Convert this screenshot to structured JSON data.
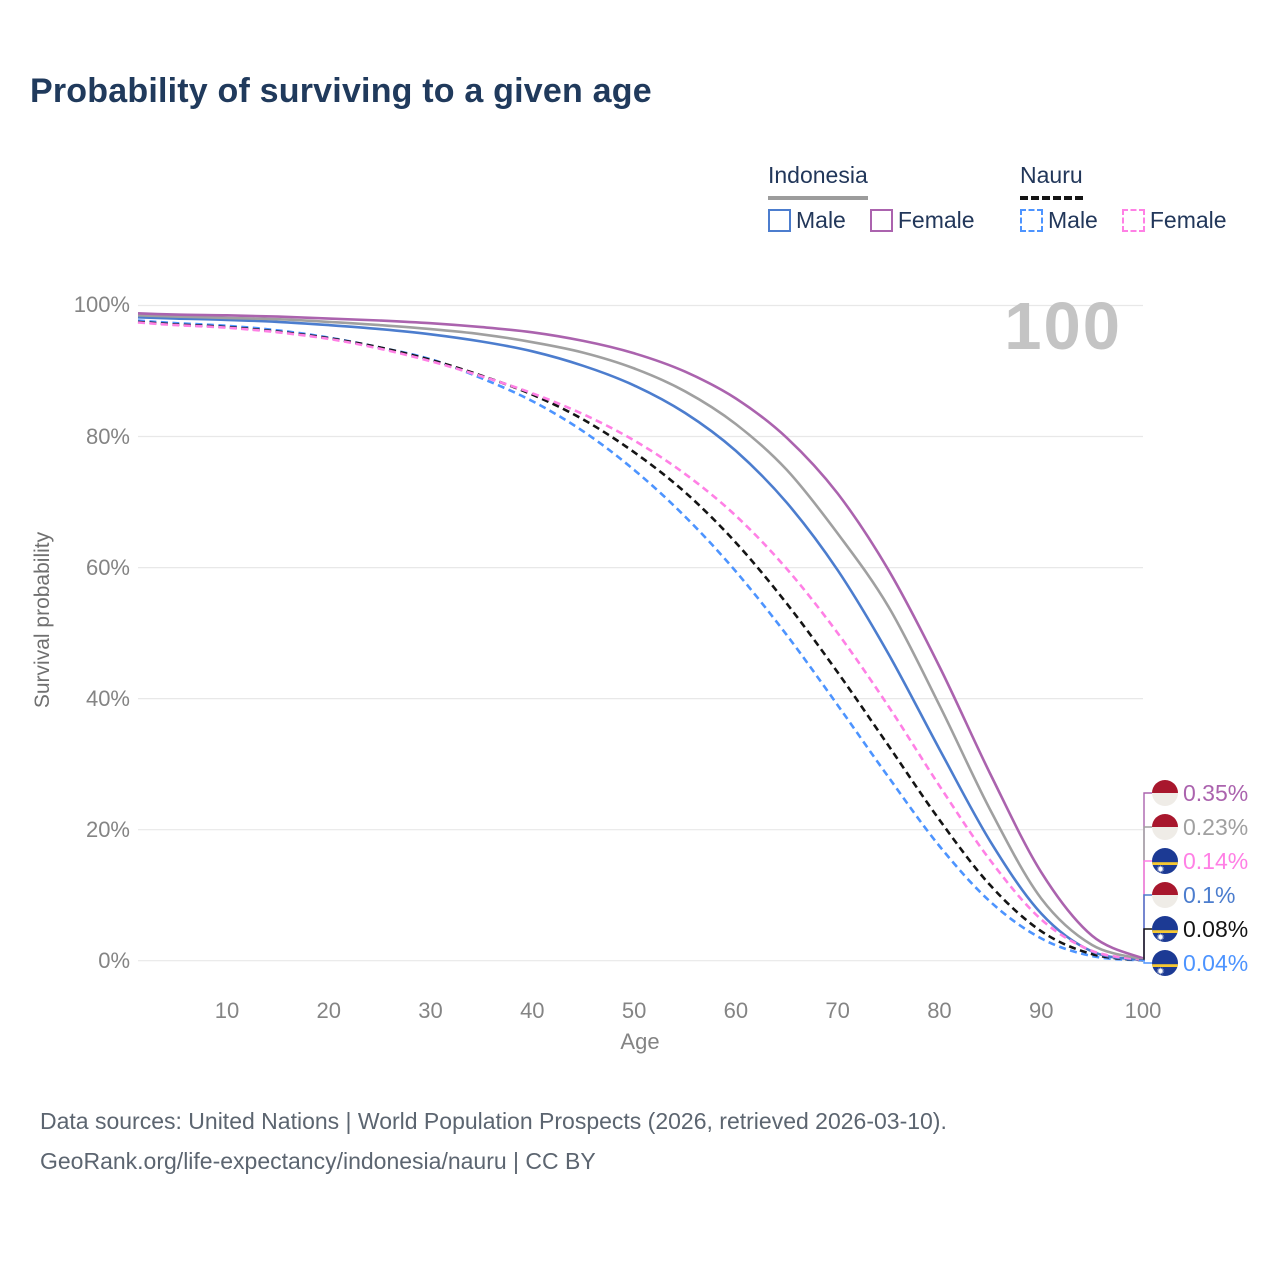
{
  "title": "Probability of surviving to a given age",
  "legend": {
    "groups": [
      {
        "name": "Indonesia",
        "line_color": "#9c9c9c",
        "line_style": "solid",
        "entries": [
          {
            "label": "Male",
            "color": "#4c7dce",
            "dashed": false
          },
          {
            "label": "Female",
            "color": "#ab63ae",
            "dashed": false
          }
        ]
      },
      {
        "name": "Nauru",
        "line_color": "#141414",
        "line_style": "dashed",
        "entries": [
          {
            "label": "Male",
            "color": "#4d94ff",
            "dashed": true
          },
          {
            "label": "Female",
            "color": "#ff80e5",
            "dashed": true
          }
        ]
      }
    ]
  },
  "chart_data": {
    "type": "line",
    "title": "Probability of surviving to a given age",
    "xlabel": "Age",
    "ylabel": "Survival probability",
    "xlim": [
      0,
      100
    ],
    "ylim": [
      0,
      100
    ],
    "grid": "horizontal",
    "legend_position": "top-right",
    "watermark": "100",
    "x_ticks": [
      10,
      20,
      30,
      40,
      50,
      60,
      70,
      80,
      90,
      100
    ],
    "y_ticks": [
      100,
      80,
      60,
      40,
      20,
      0
    ],
    "y_tick_labels": [
      "100%",
      "80%",
      "60%",
      "40%",
      "20%",
      "0%"
    ],
    "x": [
      0,
      5,
      10,
      15,
      20,
      25,
      30,
      35,
      40,
      45,
      50,
      55,
      60,
      65,
      70,
      75,
      80,
      85,
      90,
      95,
      100
    ],
    "series": [
      {
        "name": "Indonesia Female",
        "country": "Indonesia",
        "sex": "Female",
        "color": "#ab63ae",
        "dashed": false,
        "end_label": "0.35%",
        "values": [
          98.8,
          98.6,
          98.5,
          98.3,
          98.0,
          97.7,
          97.3,
          96.7,
          95.9,
          94.6,
          92.7,
          89.9,
          85.8,
          79.8,
          71.3,
          59.6,
          44.9,
          28.5,
          13.5,
          3.8,
          0.35
        ]
      },
      {
        "name": "Indonesia (both sexes)",
        "country": "Indonesia",
        "sex": "Both",
        "color": "#a0a0a0",
        "dashed": false,
        "end_label": "0.23%",
        "values": [
          98.5,
          98.3,
          98.1,
          97.9,
          97.5,
          97.0,
          96.4,
          95.6,
          94.4,
          92.8,
          90.4,
          86.9,
          81.9,
          74.9,
          65.2,
          54.0,
          39.0,
          23.0,
          9.5,
          2.4,
          0.23
        ]
      },
      {
        "name": "Nauru Female",
        "country": "Nauru",
        "sex": "Female",
        "color": "#ff80e5",
        "dashed": true,
        "end_label": "0.14%",
        "values": [
          97.4,
          97.0,
          96.6,
          95.9,
          94.9,
          93.4,
          91.5,
          89.2,
          86.6,
          83.4,
          79.4,
          74.3,
          67.9,
          59.8,
          50.0,
          38.8,
          26.7,
          15.3,
          6.3,
          1.5,
          0.14
        ]
      },
      {
        "name": "Indonesia Male",
        "country": "Indonesia",
        "sex": "Male",
        "color": "#4c7dce",
        "dashed": false,
        "end_label": "0.1%",
        "values": [
          98.2,
          98.0,
          97.8,
          97.5,
          97.0,
          96.4,
          95.6,
          94.5,
          93.0,
          90.8,
          87.8,
          83.6,
          77.8,
          69.9,
          59.6,
          46.8,
          32.3,
          18.2,
          7.2,
          1.4,
          0.1
        ]
      },
      {
        "name": "Nauru (both sexes)",
        "country": "Nauru",
        "sex": "Both",
        "color": "#141414",
        "dashed": true,
        "end_label": "0.08%",
        "values": [
          97.5,
          97.1,
          96.7,
          96.0,
          95.0,
          93.6,
          91.7,
          89.3,
          86.4,
          82.6,
          77.6,
          71.5,
          63.8,
          54.5,
          44.0,
          32.8,
          21.5,
          11.5,
          4.5,
          1.0,
          0.08
        ]
      },
      {
        "name": "Nauru Male",
        "country": "Nauru",
        "sex": "Male",
        "color": "#4d94ff",
        "dashed": true,
        "end_label": "0.04%",
        "values": [
          97.7,
          97.3,
          96.9,
          96.2,
          95.1,
          93.6,
          91.8,
          88.9,
          85.4,
          80.8,
          74.9,
          67.8,
          59.4,
          49.7,
          39.0,
          28.0,
          17.5,
          9.0,
          3.4,
          0.7,
          0.04
        ]
      }
    ]
  },
  "footer": {
    "line1": "Data sources: United Nations | World Population Prospects (2026, retrieved 2026-03-10).",
    "line2": "GeoRank.org/life-expectancy/indonesia/nauru | CC BY"
  }
}
